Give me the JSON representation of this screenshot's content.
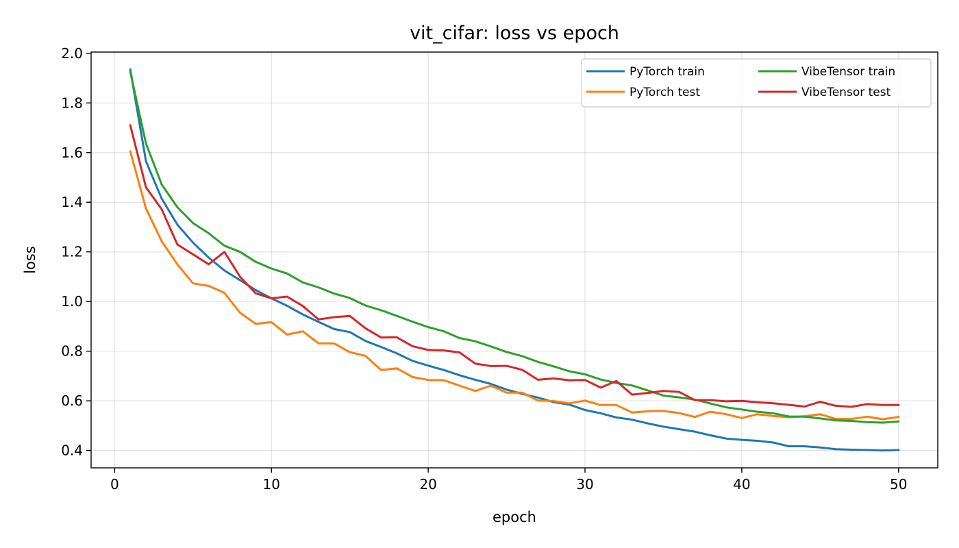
{
  "chart_data": {
    "type": "line",
    "title": "vit_cifar: loss vs epoch",
    "xlabel": "epoch",
    "ylabel": "loss",
    "xlim": [
      -1.5,
      52.5
    ],
    "ylim": [
      0.33,
      2.005
    ],
    "xticks": [
      0,
      10,
      20,
      30,
      40,
      50
    ],
    "xtick_labels": [
      "0",
      "10",
      "20",
      "30",
      "40",
      "50"
    ],
    "yticks": [
      0.4,
      0.6,
      0.8,
      1.0,
      1.2,
      1.4,
      1.6,
      1.8,
      2.0
    ],
    "ytick_labels": [
      "0.4",
      "0.6",
      "0.8",
      "1.0",
      "1.2",
      "1.4",
      "1.6",
      "1.8",
      "2.0"
    ],
    "grid": true,
    "legend_position": "top-right",
    "x": [
      1,
      2,
      3,
      4,
      5,
      6,
      7,
      8,
      9,
      10,
      11,
      12,
      13,
      14,
      15,
      16,
      17,
      18,
      19,
      20,
      21,
      22,
      23,
      24,
      25,
      26,
      27,
      28,
      29,
      30,
      31,
      32,
      33,
      34,
      35,
      36,
      37,
      38,
      39,
      40,
      41,
      42,
      43,
      44,
      45,
      46,
      47,
      48,
      49,
      50
    ],
    "series": [
      {
        "name": "PyTorch train",
        "color": "#1f77b4",
        "values": [
          1.935,
          1.565,
          1.415,
          1.31,
          1.237,
          1.177,
          1.125,
          1.086,
          1.046,
          1.013,
          0.983,
          0.948,
          0.918,
          0.889,
          0.877,
          0.841,
          0.817,
          0.791,
          0.761,
          0.742,
          0.724,
          0.703,
          0.685,
          0.668,
          0.645,
          0.628,
          0.613,
          0.595,
          0.585,
          0.563,
          0.55,
          0.533,
          0.524,
          0.509,
          0.496,
          0.486,
          0.476,
          0.461,
          0.448,
          0.443,
          0.439,
          0.432,
          0.417,
          0.417,
          0.412,
          0.405,
          0.403,
          0.402,
          0.4,
          0.402
        ]
      },
      {
        "name": "PyTorch test",
        "color": "#ff7f0e",
        "values": [
          1.605,
          1.375,
          1.243,
          1.15,
          1.073,
          1.063,
          1.035,
          0.955,
          0.91,
          0.917,
          0.867,
          0.88,
          0.832,
          0.831,
          0.796,
          0.781,
          0.724,
          0.731,
          0.696,
          0.684,
          0.683,
          0.661,
          0.64,
          0.661,
          0.633,
          0.633,
          0.601,
          0.599,
          0.59,
          0.601,
          0.583,
          0.583,
          0.553,
          0.558,
          0.559,
          0.551,
          0.535,
          0.556,
          0.546,
          0.531,
          0.546,
          0.539,
          0.534,
          0.538,
          0.546,
          0.527,
          0.527,
          0.536,
          0.526,
          0.535
        ]
      },
      {
        "name": "VibeTensor train",
        "color": "#2ca02c",
        "values": [
          1.925,
          1.637,
          1.472,
          1.38,
          1.316,
          1.275,
          1.225,
          1.2,
          1.16,
          1.133,
          1.113,
          1.077,
          1.057,
          1.032,
          1.014,
          0.984,
          0.965,
          0.942,
          0.919,
          0.897,
          0.88,
          0.853,
          0.84,
          0.819,
          0.797,
          0.78,
          0.757,
          0.739,
          0.719,
          0.707,
          0.686,
          0.672,
          0.662,
          0.642,
          0.621,
          0.614,
          0.605,
          0.589,
          0.574,
          0.565,
          0.556,
          0.55,
          0.537,
          0.536,
          0.529,
          0.521,
          0.519,
          0.514,
          0.512,
          0.517
        ]
      },
      {
        "name": "VibeTensor test",
        "color": "#d62728",
        "values": [
          1.71,
          1.46,
          1.372,
          1.23,
          1.19,
          1.15,
          1.2,
          1.1,
          1.033,
          1.013,
          1.02,
          0.982,
          0.928,
          0.937,
          0.942,
          0.892,
          0.855,
          0.856,
          0.82,
          0.805,
          0.803,
          0.795,
          0.75,
          0.74,
          0.741,
          0.725,
          0.685,
          0.69,
          0.683,
          0.684,
          0.653,
          0.68,
          0.625,
          0.632,
          0.64,
          0.636,
          0.603,
          0.603,
          0.598,
          0.6,
          0.594,
          0.59,
          0.584,
          0.577,
          0.596,
          0.58,
          0.576,
          0.587,
          0.583,
          0.583
        ]
      }
    ]
  }
}
